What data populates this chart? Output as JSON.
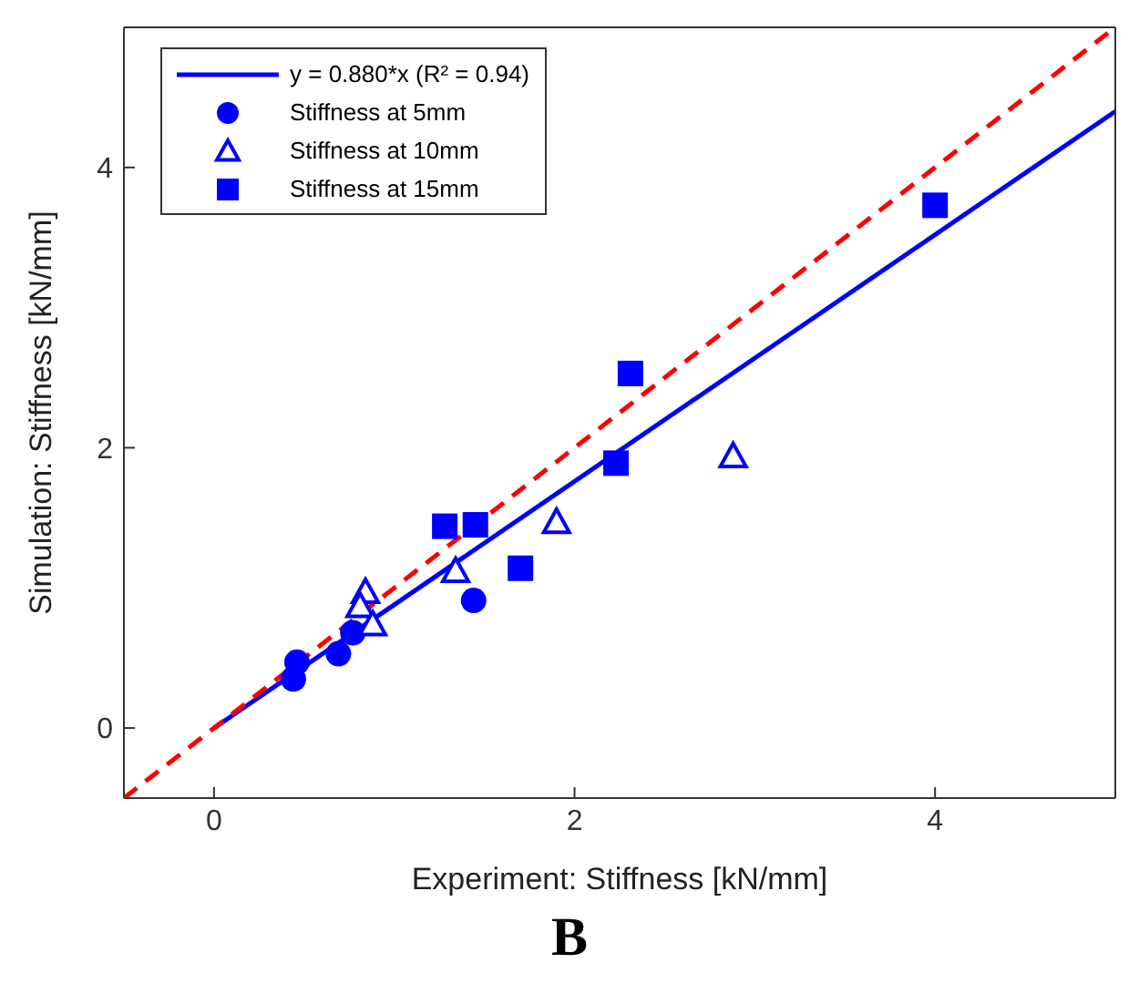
{
  "chart_data": {
    "type": "scatter",
    "xlabel": "Experiment: Stiffness [kN/mm]",
    "ylabel": "Simulation: Stiffness [kN/mm]",
    "annotations": [
      "B"
    ],
    "xlim": [
      -0.5,
      5
    ],
    "ylim": [
      -0.5,
      5
    ],
    "xticks": [
      0,
      2,
      4
    ],
    "yticks": [
      0,
      2,
      4
    ],
    "grid": false,
    "legend": "top left",
    "series": [
      {
        "name": "y = 0.880*x (R² = 0.94)",
        "type": "line",
        "color": "#0000ff",
        "x": [
          0,
          5
        ],
        "values": [
          0,
          4.4
        ],
        "marker": "none",
        "line_style": "solid"
      },
      {
        "type": "line",
        "color": "#ff0000",
        "x": [
          -0.5,
          5
        ],
        "values": [
          -0.5,
          5
        ],
        "marker": "none",
        "line_style": "dashed"
      },
      {
        "name": "Stiffness at 5mm",
        "color": "#0000ff",
        "marker": "circle",
        "x": [
          0.44,
          0.46,
          0.69,
          0.77,
          1.44
        ],
        "values": [
          0.35,
          0.47,
          0.53,
          0.68,
          0.91
        ]
      },
      {
        "name": "Stiffness at 10mm",
        "color": "#0000ff",
        "marker": "triangle",
        "x": [
          0.84,
          0.81,
          0.88,
          1.34,
          1.9,
          2.88
        ],
        "values": [
          0.97,
          0.87,
          0.74,
          1.12,
          1.47,
          1.94
        ]
      },
      {
        "name": "Stiffness at 15mm",
        "color": "#0000ff",
        "marker": "square",
        "x": [
          1.28,
          1.45,
          1.7,
          2.23,
          2.31,
          4.0
        ],
        "values": [
          1.44,
          1.45,
          1.14,
          1.89,
          2.53,
          3.73
        ]
      }
    ]
  }
}
